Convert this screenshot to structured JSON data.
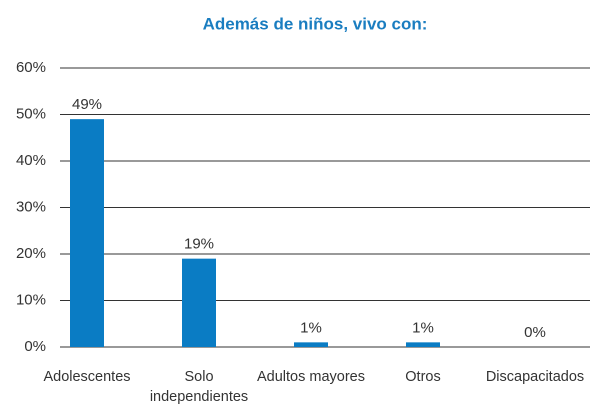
{
  "chart_data": {
    "type": "bar",
    "title": "Además de niños, vivo con:",
    "categories": [
      "Adolescentes",
      "Solo independientes",
      "Adultos mayores",
      "Otros",
      "Discapacitados"
    ],
    "values": [
      49,
      19,
      1,
      1,
      0
    ],
    "value_labels": [
      "49%",
      "19%",
      "1%",
      "1%",
      "0%"
    ],
    "color": "#0a7cc4",
    "ylim": [
      0,
      60
    ],
    "yticks": [
      {
        "value": 0,
        "label": "0%"
      },
      {
        "value": 10,
        "label": "10%"
      },
      {
        "value": 20,
        "label": "20%"
      },
      {
        "value": 30,
        "label": "30%"
      },
      {
        "value": 40,
        "label": "40%"
      },
      {
        "value": 50,
        "label": "50%"
      },
      {
        "value": 60,
        "label": "60%"
      }
    ],
    "grid": true
  }
}
